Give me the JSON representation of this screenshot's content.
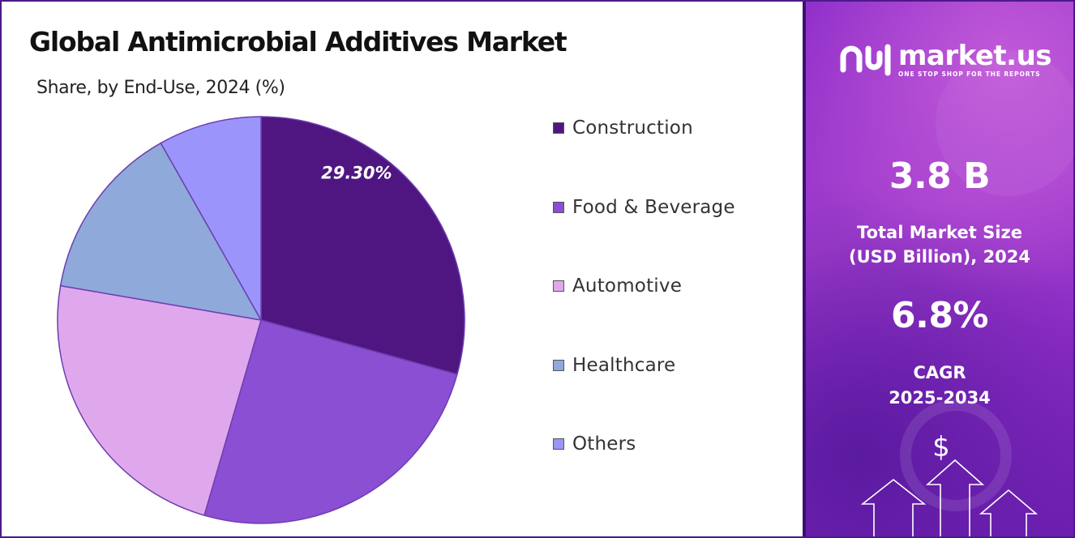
{
  "title": "Global Antimicrobial Additives Market",
  "subtitle": "Share, by End-Use, 2024 (%)",
  "chart_data": {
    "type": "pie",
    "title": "Global Antimicrobial Additives Market",
    "subtitle": "Share, by End-Use, 2024 (%)",
    "categories": [
      "Construction",
      "Food & Beverage",
      "Automotive",
      "Healthcare",
      "Others"
    ],
    "values": [
      29.3,
      25.2,
      23.2,
      14.1,
      8.2
    ],
    "colors": [
      "#4f1682",
      "#8a4fd3",
      "#e0a8ec",
      "#8fa9db",
      "#9b94fb"
    ],
    "data_labels": [
      "29.30%",
      "",
      "",
      "",
      ""
    ],
    "legend_position": "right"
  },
  "sidebar": {
    "brand": "market.us",
    "tagline": "ONE STOP SHOP FOR THE REPORTS",
    "market_size_value": "3.8 B",
    "market_size_label_1": "Total Market Size",
    "market_size_label_2": "(USD Billion), 2024",
    "cagr_value": "6.8%",
    "cagr_label_1": "CAGR",
    "cagr_label_2": "2025-2034",
    "dollar_symbol": "$"
  }
}
